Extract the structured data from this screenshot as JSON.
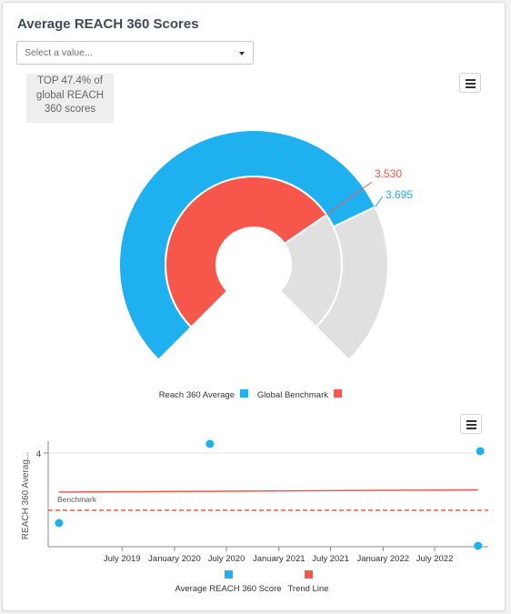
{
  "header": {
    "title": "Average REACH 360 Scores",
    "select_placeholder": "Select a value...",
    "stat_text": "TOP 47.4% of global REACH 360 scores"
  },
  "icons": {
    "menu": "hamburger-menu-icon",
    "dropdown": "chevron-down-icon"
  },
  "colors": {
    "reach": "#1fb0f0",
    "benchmark": "#f7564b",
    "track": "#e0e0e0"
  },
  "chart_data": [
    {
      "type": "gauge",
      "title": "",
      "series": [
        {
          "name": "Reach 360 Average",
          "value": 3.695,
          "label": "3.695",
          "color": "#1fb0f0"
        },
        {
          "name": "Global Benchmark",
          "value": 3.53,
          "label": "3.530",
          "color": "#f7564b"
        }
      ],
      "legend_position": "bottom"
    },
    {
      "type": "scatter",
      "title": "",
      "ylabel": "REACH 360 Averag...",
      "y_ticks": [
        4
      ],
      "x_ticks": [
        "July 2019",
        "January 2020",
        "July 2020",
        "January 2021",
        "July 2021",
        "January 2022",
        "July 2022"
      ],
      "benchmark_label": "Benchmark",
      "benchmark_value": 3.53,
      "series": [
        {
          "name": "Average REACH 360 Score",
          "color": "#1fb0f0",
          "points": [
            {
              "x": "2018-11-22",
              "y": 3.53
            },
            {
              "x": "2020-05-04",
              "y": 4.13
            },
            {
              "x": "2022-12-08",
              "y": 4.04
            },
            {
              "x": "2022-11-30",
              "y": 3.15
            }
          ]
        },
        {
          "name": "Trend Line",
          "color": "#f7564b",
          "line": [
            {
              "x": "2018-11-22",
              "y": 3.73
            },
            {
              "x": "2022-11-30",
              "y": 3.76
            }
          ]
        }
      ],
      "legend_position": "bottom",
      "grid": true
    }
  ]
}
